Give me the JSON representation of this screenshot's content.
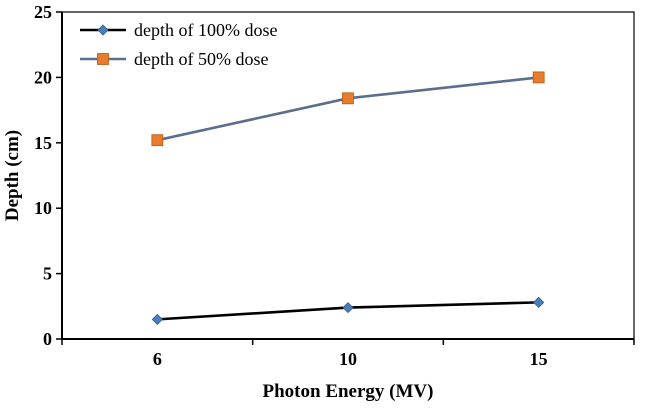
{
  "chart_data": {
    "type": "line",
    "categories": [
      "6",
      "10",
      "15"
    ],
    "series": [
      {
        "name": "depth of 100% dose",
        "values": [
          1.5,
          2.4,
          2.8
        ],
        "line_color": "#000000",
        "marker": "diamond",
        "marker_color": "#4a7ebb"
      },
      {
        "name": "depth of 50% dose",
        "values": [
          15.2,
          18.4,
          20.0
        ],
        "line_color": "#5b6e8e",
        "marker": "square",
        "marker_color": "#e97c2c"
      }
    ],
    "title": "",
    "xlabel": "Photon Energy (MV)",
    "ylabel": "Depth (cm)",
    "ylim": [
      0,
      25
    ],
    "ytick_step": 5,
    "yticks": [
      0,
      5,
      10,
      15,
      20,
      25
    ],
    "grid": false,
    "legend_position": "top-left",
    "plot_border": true,
    "axis_color": "#000000",
    "background_color": "#ffffff"
  }
}
